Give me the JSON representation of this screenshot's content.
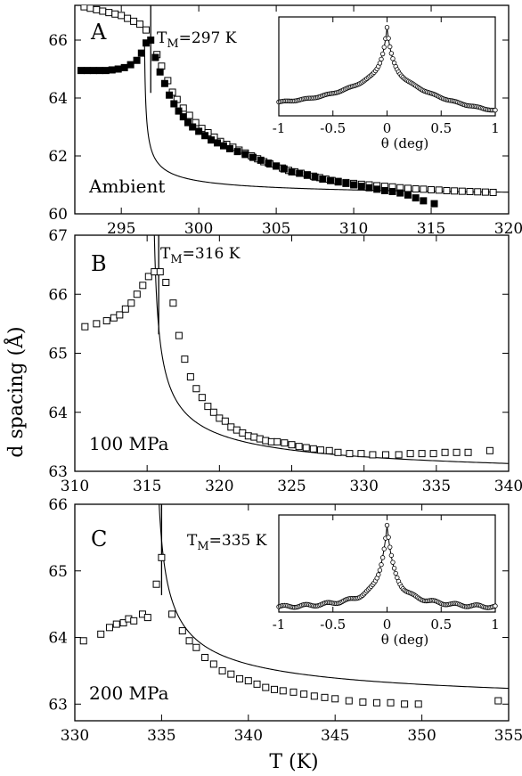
{
  "figure": {
    "shared_ylabel": "d spacing (Å)",
    "shared_xlabel": "T (K)"
  },
  "chart_data": [
    {
      "type": "scatter",
      "panel_label": "A",
      "condition": "Ambient",
      "annotation": {
        "prefix": "T",
        "sub": "M",
        "suffix": "=297 K"
      },
      "xlim": [
        292,
        320
      ],
      "ylim": [
        60,
        67.2
      ],
      "xticks": [
        295,
        300,
        305,
        310,
        315,
        320
      ],
      "yticks": [
        60,
        62,
        64,
        66
      ],
      "transition_x": 296.9,
      "fit": {
        "a": 60.5,
        "b": 1.2,
        "x0": 296.45
      },
      "series": [
        {
          "marker": "open-square",
          "points": [
            [
              292.6,
              67.15
            ],
            [
              293.0,
              67.1
            ],
            [
              293.4,
              67.05
            ],
            [
              293.8,
              67.0
            ],
            [
              294.2,
              66.95
            ],
            [
              294.6,
              66.9
            ],
            [
              295.0,
              66.85
            ],
            [
              295.4,
              66.75
            ],
            [
              295.8,
              66.65
            ],
            [
              296.2,
              66.55
            ],
            [
              296.6,
              66.35
            ],
            [
              297.3,
              65.5
            ],
            [
              297.6,
              65.1
            ],
            [
              298.0,
              64.6
            ],
            [
              298.3,
              64.2
            ],
            [
              298.6,
              63.95
            ],
            [
              299.0,
              63.65
            ],
            [
              299.4,
              63.4
            ],
            [
              299.8,
              63.15
            ],
            [
              300.2,
              62.95
            ],
            [
              300.6,
              62.8
            ],
            [
              301.0,
              62.65
            ],
            [
              301.4,
              62.5
            ],
            [
              301.8,
              62.4
            ],
            [
              302.2,
              62.3
            ],
            [
              302.6,
              62.2
            ],
            [
              303.0,
              62.1
            ],
            [
              303.4,
              62.0
            ],
            [
              303.8,
              61.9
            ],
            [
              304.2,
              61.8
            ],
            [
              304.6,
              61.72
            ],
            [
              305.0,
              61.65
            ],
            [
              305.4,
              61.58
            ],
            [
              305.8,
              61.5
            ],
            [
              306.2,
              61.45
            ],
            [
              306.6,
              61.4
            ],
            [
              307.0,
              61.35
            ],
            [
              307.4,
              61.3
            ],
            [
              307.8,
              61.25
            ],
            [
              308.2,
              61.2
            ],
            [
              308.6,
              61.15
            ],
            [
              309.0,
              61.12
            ],
            [
              309.5,
              61.08
            ],
            [
              310.0,
              61.05
            ],
            [
              310.5,
              61.02
            ],
            [
              311.0,
              61.0
            ],
            [
              311.5,
              60.97
            ],
            [
              312.0,
              60.95
            ],
            [
              312.5,
              60.93
            ],
            [
              313.0,
              60.9
            ],
            [
              313.5,
              60.88
            ],
            [
              314.0,
              60.86
            ],
            [
              314.5,
              60.85
            ],
            [
              315.0,
              60.83
            ],
            [
              315.5,
              60.82
            ],
            [
              316.0,
              60.8
            ],
            [
              316.5,
              60.79
            ],
            [
              317.0,
              60.78
            ],
            [
              317.5,
              60.77
            ],
            [
              318.0,
              60.76
            ],
            [
              318.5,
              60.75
            ],
            [
              319.0,
              60.74
            ]
          ]
        },
        {
          "marker": "filled-square",
          "points": [
            [
              292.4,
              64.95
            ],
            [
              292.8,
              64.95
            ],
            [
              293.2,
              64.95
            ],
            [
              293.6,
              64.95
            ],
            [
              294.0,
              64.95
            ],
            [
              294.4,
              64.97
            ],
            [
              294.8,
              65.0
            ],
            [
              295.2,
              65.05
            ],
            [
              295.6,
              65.15
            ],
            [
              296.0,
              65.3
            ],
            [
              296.3,
              65.55
            ],
            [
              296.6,
              65.9
            ],
            [
              296.9,
              66.0
            ],
            [
              297.2,
              65.4
            ],
            [
              297.5,
              64.9
            ],
            [
              297.8,
              64.5
            ],
            [
              298.1,
              64.1
            ],
            [
              298.4,
              63.8
            ],
            [
              298.7,
              63.55
            ],
            [
              299.0,
              63.35
            ],
            [
              299.3,
              63.15
            ],
            [
              299.6,
              63.0
            ],
            [
              300.0,
              62.85
            ],
            [
              300.4,
              62.7
            ],
            [
              300.8,
              62.55
            ],
            [
              301.2,
              62.45
            ],
            [
              301.6,
              62.35
            ],
            [
              302.0,
              62.25
            ],
            [
              302.5,
              62.15
            ],
            [
              303.0,
              62.05
            ],
            [
              303.5,
              61.95
            ],
            [
              304.0,
              61.85
            ],
            [
              304.5,
              61.75
            ],
            [
              305.0,
              61.65
            ],
            [
              305.5,
              61.55
            ],
            [
              306.0,
              61.45
            ],
            [
              306.5,
              61.4
            ],
            [
              307.0,
              61.33
            ],
            [
              307.5,
              61.27
            ],
            [
              308.0,
              61.2
            ],
            [
              308.5,
              61.15
            ],
            [
              309.0,
              61.1
            ],
            [
              309.5,
              61.05
            ],
            [
              310.0,
              61.0
            ],
            [
              310.5,
              60.95
            ],
            [
              311.0,
              60.9
            ],
            [
              311.5,
              60.85
            ],
            [
              312.0,
              60.8
            ],
            [
              312.5,
              60.77
            ],
            [
              313.0,
              60.72
            ],
            [
              313.5,
              60.65
            ],
            [
              314.0,
              60.55
            ],
            [
              314.5,
              60.45
            ],
            [
              315.2,
              60.35
            ]
          ]
        }
      ],
      "inset": {
        "xlabel": "θ (deg)",
        "xlim": [
          -1,
          1
        ],
        "xticks": [
          -1,
          -0.5,
          0,
          0.5,
          1
        ],
        "xticklabels": [
          "-1",
          "-0.5",
          "0",
          "0.5",
          "1"
        ],
        "profile": {
          "base": 0.0,
          "peak": 1.0,
          "narrow_w": 0.045,
          "narrow_amp": 0.45,
          "wide_w": 0.5,
          "wide_amp": 0.55,
          "slope": 0.05
        }
      }
    },
    {
      "type": "scatter",
      "panel_label": "B",
      "condition": "100 MPa",
      "annotation": {
        "prefix": "T",
        "sub": "M",
        "suffix": "=316 K"
      },
      "xlim": [
        310,
        340
      ],
      "ylim": [
        63,
        67
      ],
      "xticks": [
        310,
        315,
        320,
        325,
        330,
        335,
        340
      ],
      "yticks": [
        63,
        64,
        65,
        66,
        67
      ],
      "transition_x": 315.8,
      "fit": {
        "a": 62.75,
        "b": 1.9,
        "x0": 315.3
      },
      "series": [
        {
          "marker": "open-square",
          "points": [
            [
              310.7,
              65.45
            ],
            [
              311.5,
              65.5
            ],
            [
              312.2,
              65.55
            ],
            [
              312.7,
              65.6
            ],
            [
              313.1,
              65.65
            ],
            [
              313.5,
              65.75
            ],
            [
              313.9,
              65.85
            ],
            [
              314.3,
              66.0
            ],
            [
              314.7,
              66.15
            ],
            [
              315.1,
              66.3
            ],
            [
              315.5,
              66.38
            ],
            [
              315.9,
              66.38
            ],
            [
              316.3,
              66.2
            ],
            [
              316.8,
              65.85
            ],
            [
              317.2,
              65.3
            ],
            [
              317.6,
              64.9
            ],
            [
              318.0,
              64.6
            ],
            [
              318.4,
              64.4
            ],
            [
              318.8,
              64.25
            ],
            [
              319.2,
              64.1
            ],
            [
              319.6,
              64.0
            ],
            [
              320.0,
              63.9
            ],
            [
              320.4,
              63.85
            ],
            [
              320.8,
              63.75
            ],
            [
              321.2,
              63.7
            ],
            [
              321.6,
              63.65
            ],
            [
              322.0,
              63.6
            ],
            [
              322.4,
              63.58
            ],
            [
              322.8,
              63.55
            ],
            [
              323.2,
              63.52
            ],
            [
              323.6,
              63.5
            ],
            [
              324.0,
              63.5
            ],
            [
              324.5,
              63.48
            ],
            [
              325.0,
              63.45
            ],
            [
              325.5,
              63.42
            ],
            [
              326.0,
              63.4
            ],
            [
              326.5,
              63.38
            ],
            [
              327.0,
              63.36
            ],
            [
              327.6,
              63.35
            ],
            [
              328.2,
              63.32
            ],
            [
              329.0,
              63.3
            ],
            [
              329.8,
              63.3
            ],
            [
              330.6,
              63.28
            ],
            [
              331.5,
              63.28
            ],
            [
              332.4,
              63.28
            ],
            [
              333.2,
              63.3
            ],
            [
              334.0,
              63.3
            ],
            [
              334.8,
              63.3
            ],
            [
              335.6,
              63.32
            ],
            [
              336.4,
              63.32
            ],
            [
              337.2,
              63.32
            ],
            [
              338.7,
              63.35
            ]
          ]
        }
      ]
    },
    {
      "type": "scatter",
      "panel_label": "C",
      "condition": "200 MPa",
      "annotation": {
        "prefix": "T",
        "sub": "M",
        "suffix": "=335 K"
      },
      "xlim": [
        330,
        355
      ],
      "ylim": [
        62.75,
        66
      ],
      "xticks": [
        330,
        335,
        340,
        345,
        350,
        355
      ],
      "yticks": [
        63,
        64,
        65,
        66
      ],
      "transition_x": 335,
      "fit": {
        "a": 62.85,
        "b": 1.75,
        "x0": 334.55
      },
      "series": [
        {
          "marker": "open-square",
          "points": [
            [
              330.5,
              63.95
            ],
            [
              331.5,
              64.05
            ],
            [
              332.0,
              64.15
            ],
            [
              332.4,
              64.2
            ],
            [
              332.8,
              64.22
            ],
            [
              333.1,
              64.28
            ],
            [
              333.4,
              64.25
            ],
            [
              333.9,
              64.35
            ],
            [
              334.2,
              64.3
            ],
            [
              334.7,
              64.8
            ],
            [
              335.0,
              65.2
            ],
            [
              335.6,
              64.35
            ],
            [
              336.2,
              64.1
            ],
            [
              336.6,
              63.95
            ],
            [
              337.0,
              63.85
            ],
            [
              337.5,
              63.7
            ],
            [
              338.0,
              63.6
            ],
            [
              338.5,
              63.5
            ],
            [
              339.0,
              63.45
            ],
            [
              339.5,
              63.38
            ],
            [
              340.0,
              63.35
            ],
            [
              340.5,
              63.3
            ],
            [
              341.0,
              63.25
            ],
            [
              341.5,
              63.22
            ],
            [
              342.0,
              63.2
            ],
            [
              342.6,
              63.18
            ],
            [
              343.2,
              63.15
            ],
            [
              343.8,
              63.12
            ],
            [
              344.4,
              63.1
            ],
            [
              345.0,
              63.08
            ],
            [
              345.8,
              63.05
            ],
            [
              346.6,
              63.03
            ],
            [
              347.4,
              63.02
            ],
            [
              348.2,
              63.02
            ],
            [
              349.0,
              63.0
            ],
            [
              349.8,
              63.0
            ],
            [
              354.4,
              63.05
            ]
          ]
        }
      ],
      "inset": {
        "xlabel": "θ (deg)",
        "xlim": [
          -1,
          1
        ],
        "xticks": [
          -1,
          -0.5,
          0,
          0.5,
          1
        ],
        "xticklabels": [
          "-1",
          "-0.5",
          "0",
          "0.5",
          "1"
        ],
        "profile": {
          "base": 0.0,
          "peak": 1.0,
          "narrow_w": 0.06,
          "narrow_amp": 0.7,
          "wide_w": 0.3,
          "wide_amp": 0.3,
          "slope": 0.0
        }
      }
    }
  ]
}
